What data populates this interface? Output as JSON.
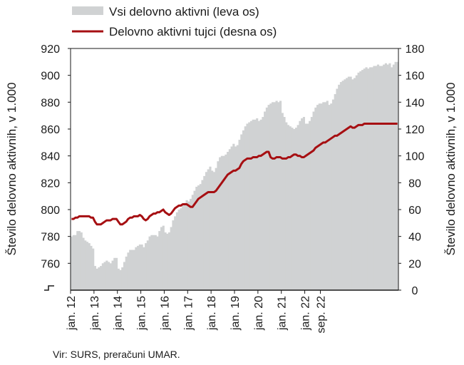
{
  "chart_data": {
    "type": "bar+line",
    "legend": [
      {
        "label": "Vsi delovno aktivni (leva os)",
        "kind": "area",
        "color": "#d0d2d3"
      },
      {
        "label": "Delovno aktivni tujci (desna os)",
        "kind": "line",
        "color": "#a60f12"
      }
    ],
    "ylabel_left": "Število delovno aktivnih, v 1.000",
    "ylabel_right": "Število delovno aktivnih, v 1.000",
    "y_left": {
      "ylim": [
        740,
        920
      ],
      "ticks": [
        "760",
        "780",
        "800",
        "820",
        "840",
        "860",
        "880",
        "900",
        "920"
      ]
    },
    "y_right": {
      "ylim": [
        0,
        180
      ],
      "ticks": [
        "0",
        "20",
        "40",
        "60",
        "80",
        "100",
        "120",
        "140",
        "160",
        "180"
      ]
    },
    "x_ticks": [
      "jan. 12",
      "jan. 13",
      "jan. 14",
      "jan. 15",
      "jan. 16",
      "jan. 17",
      "jan. 18",
      "jan. 19",
      "jan. 20",
      "jan. 21",
      "jan. 22",
      "sep. 22"
    ],
    "x_start": "2012-01",
    "x_end": "2022-09",
    "series": [
      {
        "name": "Vsi delovno aktivni (leva os)",
        "axis": "left",
        "values": [
          780,
          781,
          781,
          784,
          784,
          783,
          779,
          777,
          776,
          775,
          773,
          771,
          758,
          756,
          757,
          758,
          760,
          761,
          762,
          761,
          760,
          762,
          764,
          764,
          756,
          755,
          757,
          761,
          765,
          768,
          770,
          770,
          770,
          772,
          773,
          774,
          774,
          772,
          775,
          777,
          780,
          781,
          781,
          781,
          780,
          784,
          787,
          788,
          783,
          782,
          783,
          787,
          792,
          795,
          798,
          800,
          801,
          803,
          805,
          807,
          806,
          808,
          811,
          814,
          817,
          818,
          819,
          822,
          825,
          828,
          830,
          832,
          829,
          828,
          831,
          836,
          839,
          840,
          840,
          841,
          843,
          845,
          847,
          849,
          847,
          848,
          852,
          856,
          859,
          862,
          864,
          865,
          866,
          867,
          867,
          868,
          866,
          867,
          869,
          873,
          876,
          878,
          879,
          880,
          880,
          881,
          880,
          881,
          872,
          869,
          865,
          863,
          862,
          861,
          860,
          861,
          863,
          866,
          868,
          869,
          864,
          864,
          866,
          869,
          873,
          876,
          878,
          879,
          879,
          880,
          880,
          881,
          878,
          879,
          882,
          886,
          890,
          893,
          895,
          896,
          897,
          898,
          899,
          899,
          897,
          898,
          900,
          902,
          903,
          904,
          905,
          906,
          905,
          906,
          906,
          907,
          907,
          908,
          907,
          907,
          908,
          909,
          908,
          909,
          906,
          908,
          910,
          910
        ]
      },
      {
        "name": "Delovno aktivni tujci (desna os)",
        "axis": "right",
        "values": [
          53,
          53,
          54,
          54,
          55,
          55,
          55,
          55,
          55,
          55,
          54,
          54,
          51,
          49,
          49,
          49,
          50,
          51,
          52,
          52,
          52,
          53,
          53,
          53,
          51,
          49,
          49,
          50,
          51,
          53,
          54,
          54,
          55,
          55,
          55,
          56,
          55,
          53,
          52,
          53,
          55,
          56,
          57,
          57,
          58,
          58,
          59,
          60,
          58,
          57,
          56,
          57,
          59,
          61,
          62,
          63,
          63,
          64,
          64,
          64,
          63,
          62,
          62,
          64,
          66,
          68,
          69,
          70,
          71,
          72,
          73,
          73,
          73,
          73,
          74,
          76,
          78,
          80,
          82,
          84,
          86,
          87,
          88,
          89,
          89,
          90,
          91,
          94,
          96,
          97,
          98,
          98,
          98,
          99,
          99,
          99,
          100,
          100,
          101,
          102,
          103,
          103,
          99,
          98,
          98,
          99,
          99,
          99,
          98,
          98,
          98,
          99,
          99,
          100,
          101,
          101,
          100,
          100,
          99,
          99,
          100,
          101,
          102,
          103,
          104,
          106,
          107,
          108,
          109,
          110,
          110,
          111,
          112,
          113,
          114,
          115,
          115,
          116,
          117,
          118,
          119,
          120,
          121,
          122,
          121,
          121,
          122,
          123,
          123,
          123,
          124,
          124,
          124,
          124,
          124,
          124,
          124,
          124,
          124,
          124,
          124,
          124,
          124,
          124,
          124,
          124,
          124,
          124
        ]
      }
    ],
    "grid": false
  },
  "source_note": "Vir: SURS, preračuni UMAR."
}
